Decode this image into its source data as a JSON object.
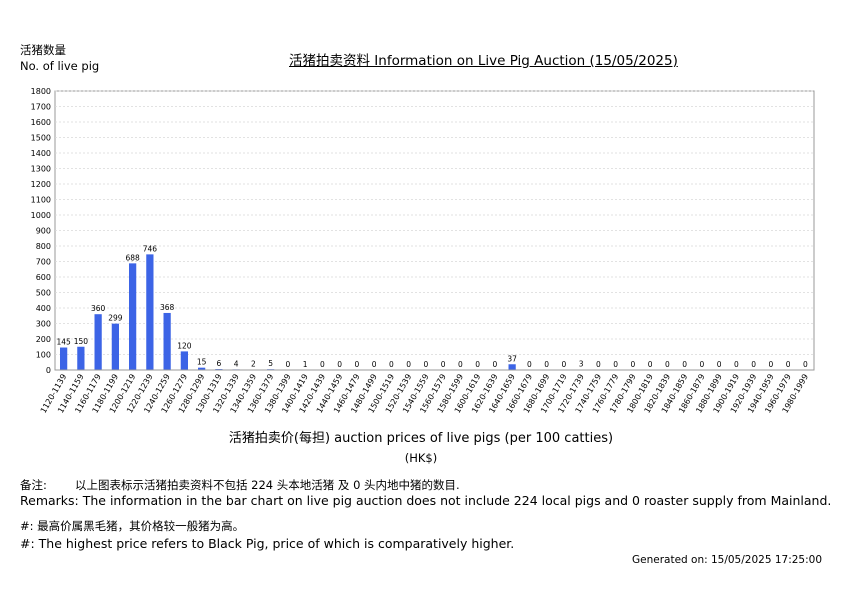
{
  "header": {
    "ylabel_zh": "活猪数量",
    "ylabel_en": "No. of live pig",
    "title": "活猪拍卖资料 Information on Live Pig Auction (15/05/2025)"
  },
  "axis": {
    "xlabel": "活猪拍卖价(每担) auction prices of live pigs (per 100 catties)",
    "unit": "(HK$)"
  },
  "remarks": {
    "zh_label": "备注:",
    "zh_text": "以上图表标示活猪拍卖资料不包括 224 头本地活猪 及 0 头内地中猪的数目.",
    "en": "Remarks: The information in the bar chart on live pig auction does not include 224 local pigs and 0 roaster supply from Mainland.",
    "note_zh": "#: 最高价属黑毛猪，其价格较一般猪为高。",
    "note_en": "#: The highest price refers to Black Pig, price of which is comparatively higher."
  },
  "footer": {
    "generated": "Generated on: 15/05/2025 17:25:00"
  },
  "colors": {
    "bar": "#3c64e6",
    "grid": "#d9d9d9",
    "axis": "#9a9a9a"
  },
  "chart_data": {
    "type": "bar",
    "title": "活猪拍卖资料 Information on Live Pig Auction (15/05/2025)",
    "xlabel": "活猪拍卖价(每担) auction prices of live pigs (per 100 catties)",
    "ylabel": "No. of live pig",
    "ylim": [
      0,
      1800
    ],
    "yticks": [
      0,
      100,
      200,
      300,
      400,
      500,
      600,
      700,
      800,
      900,
      1000,
      1100,
      1200,
      1300,
      1400,
      1500,
      1600,
      1700,
      1800
    ],
    "grid": true,
    "categories": [
      "1120-1139",
      "1140-1159",
      "1160-1179",
      "1180-1199",
      "1200-1219",
      "1220-1239",
      "1240-1259",
      "1260-1279",
      "1280-1299",
      "1300-1319",
      "1320-1339",
      "1340-1359",
      "1360-1379",
      "1380-1399",
      "1400-1419",
      "1420-1439",
      "1440-1459",
      "1460-1479",
      "1480-1499",
      "1500-1519",
      "1520-1539",
      "1540-1559",
      "1560-1579",
      "1580-1599",
      "1600-1619",
      "1620-1639",
      "1640-1659",
      "1660-1679",
      "1680-1699",
      "1700-1719",
      "1720-1739",
      "1740-1759",
      "1760-1779",
      "1780-1799",
      "1800-1819",
      "1820-1839",
      "1840-1859",
      "1860-1879",
      "1880-1899",
      "1900-1919",
      "1920-1939",
      "1940-1959",
      "1960-1979",
      "1980-1999"
    ],
    "values": [
      145,
      150,
      360,
      299,
      688,
      746,
      368,
      120,
      15,
      6,
      4,
      2,
      5,
      0,
      1,
      0,
      0,
      0,
      0,
      0,
      0,
      0,
      0,
      0,
      0,
      0,
      37,
      0,
      0,
      0,
      3,
      0,
      0,
      0,
      0,
      0,
      0,
      0,
      0,
      0,
      0,
      0,
      0,
      0
    ]
  }
}
